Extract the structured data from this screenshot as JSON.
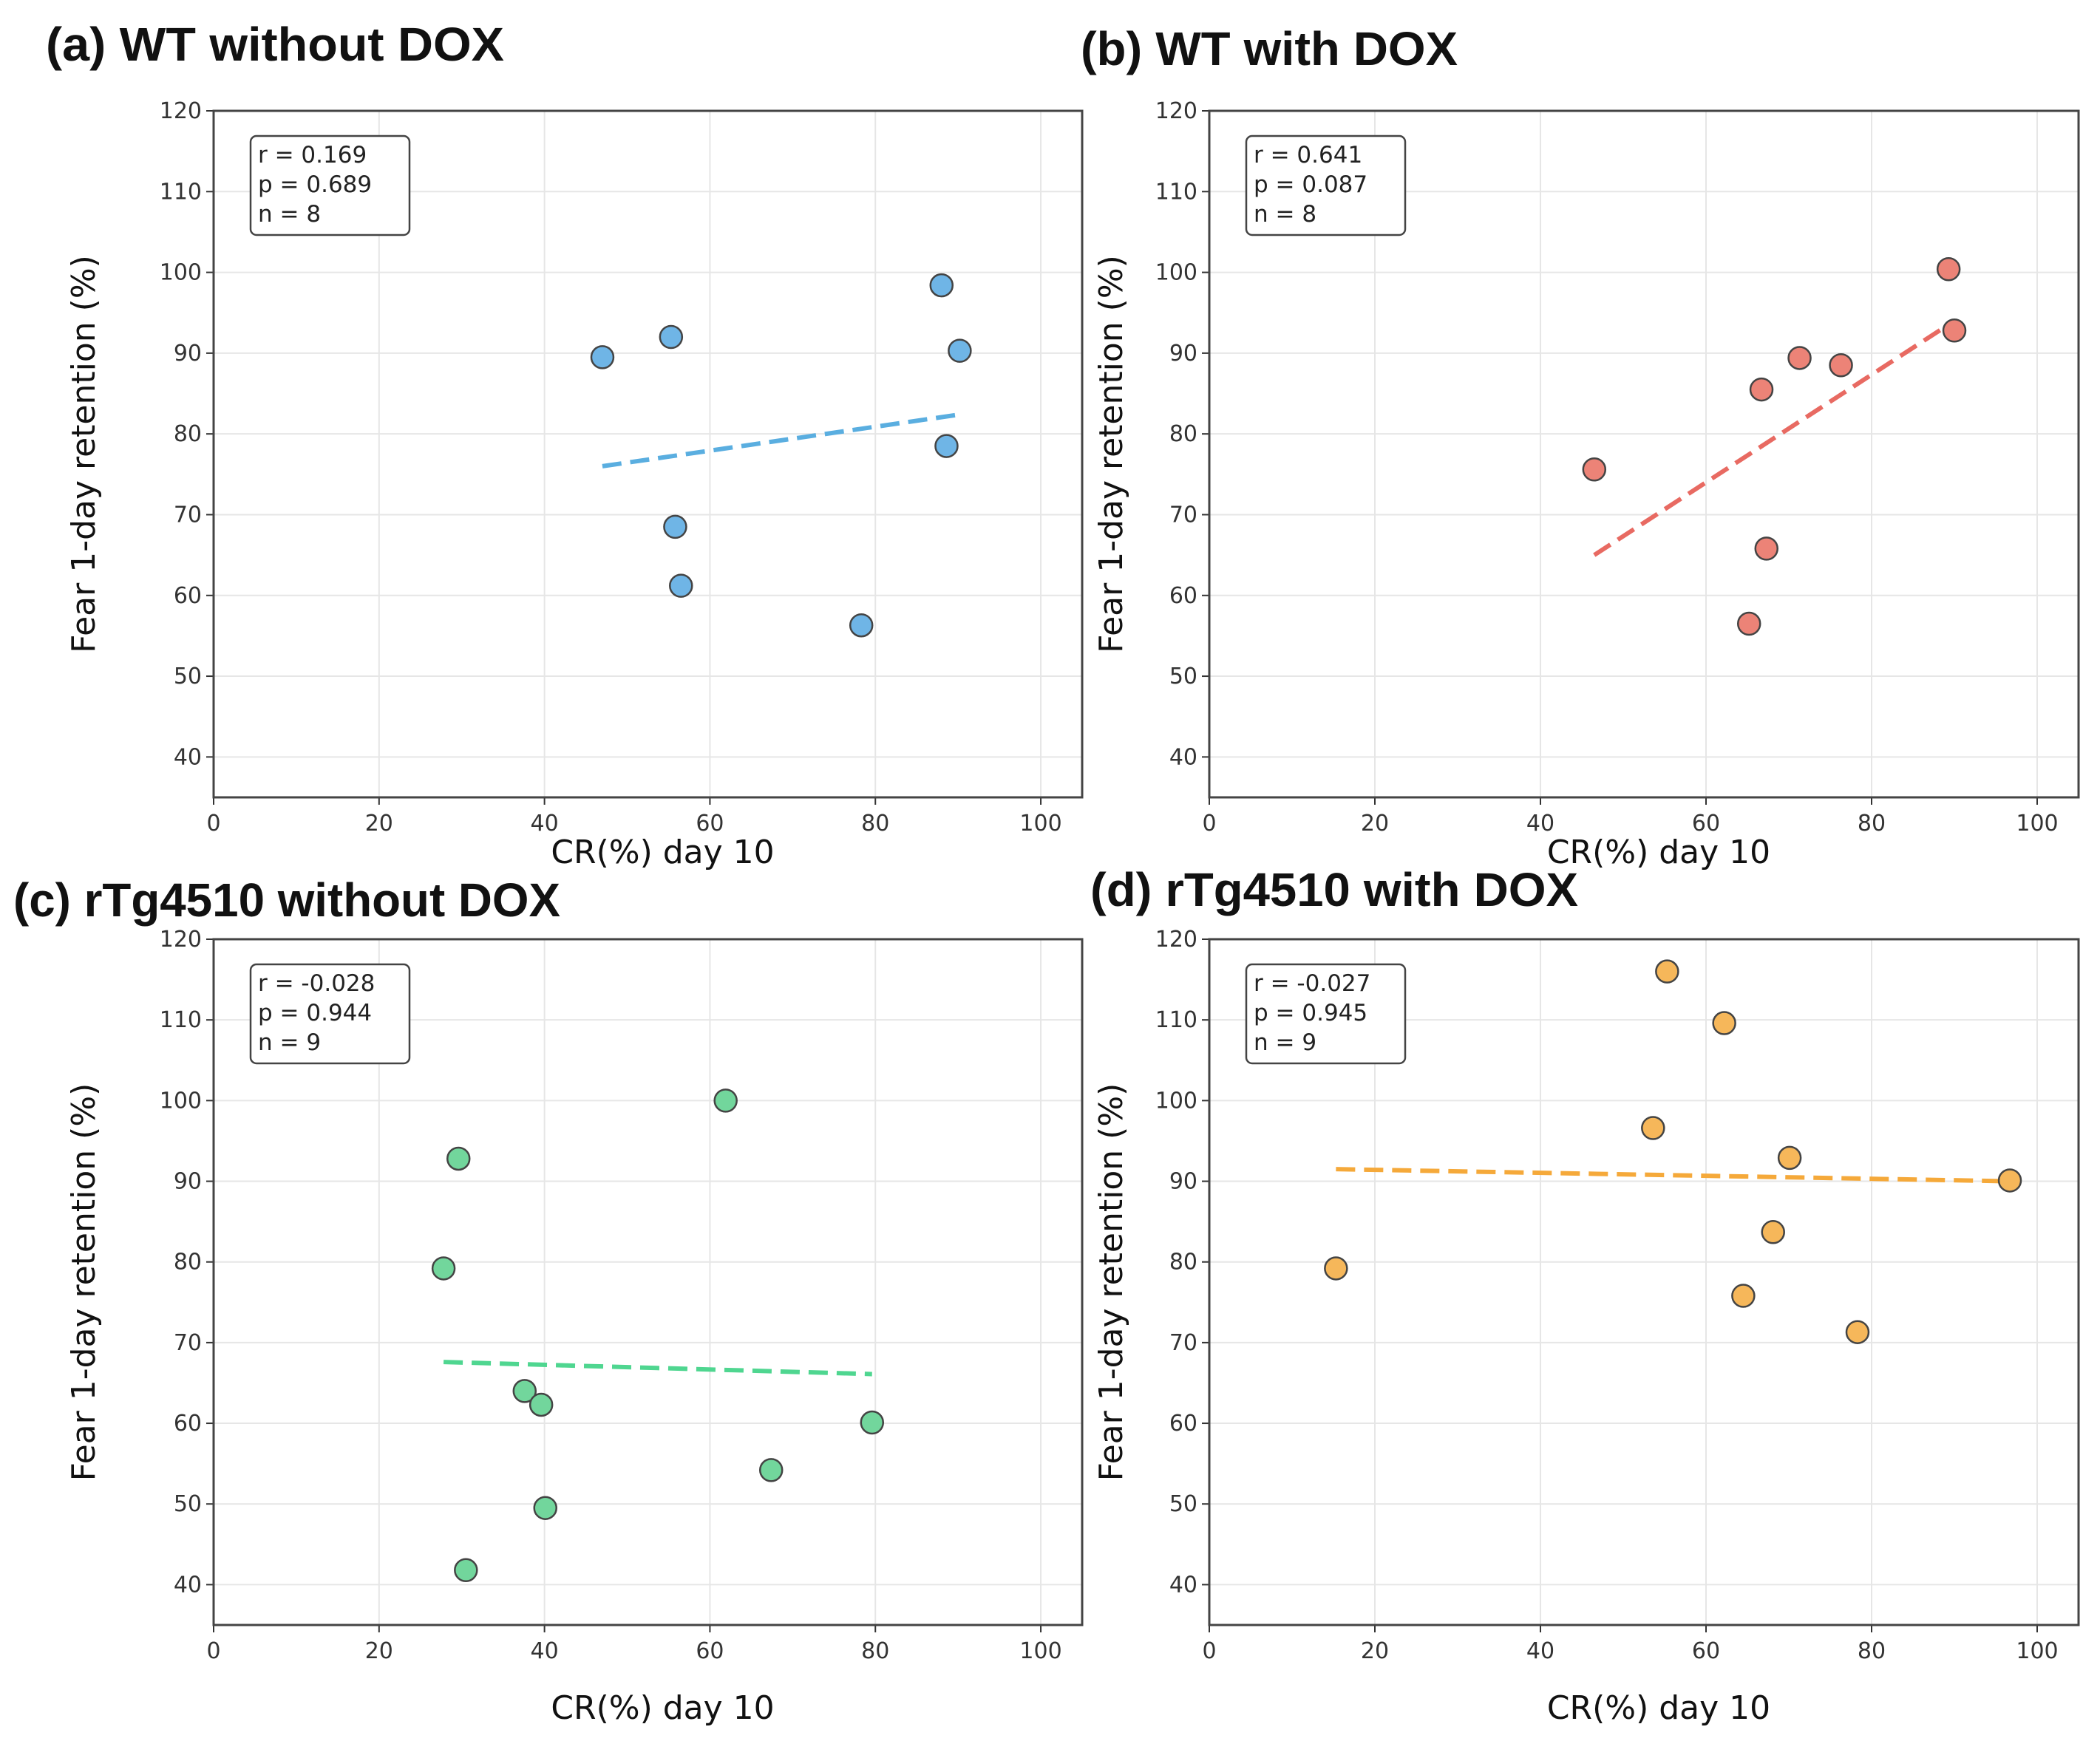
{
  "chart_data": [
    {
      "type": "scatter",
      "title": "(a) WT without DOX",
      "xlabel": "CR(%) day 10",
      "ylabel": "Fear 1-day retention (%)",
      "xlim": [
        0,
        105
      ],
      "ylim": [
        35,
        120
      ],
      "xticks": [
        0,
        20,
        40,
        60,
        80,
        100
      ],
      "yticks": [
        40,
        50,
        60,
        70,
        80,
        90,
        100,
        110,
        120
      ],
      "grid": true,
      "color": "#6fb5e6",
      "line_color": "#5aaee0",
      "stats": [
        "r = 0.169",
        "p = 0.689",
        "n = 8"
      ],
      "points": [
        [
          47,
          89.5
        ],
        [
          55.3,
          92
        ],
        [
          55.8,
          68.5
        ],
        [
          56.5,
          61.2
        ],
        [
          78.3,
          56.3
        ],
        [
          88,
          98.4
        ],
        [
          88.6,
          78.5
        ],
        [
          90.2,
          90.3
        ]
      ],
      "trendline": [
        [
          47,
          76
        ],
        [
          90.2,
          82.4
        ]
      ]
    },
    {
      "type": "scatter",
      "title": "(b) WT with DOX",
      "xlabel": "CR(%) day 10",
      "ylabel": "Fear 1-day retention (%)",
      "xlim": [
        0,
        105
      ],
      "ylim": [
        35,
        120
      ],
      "xticks": [
        0,
        20,
        40,
        60,
        80,
        100
      ],
      "yticks": [
        40,
        50,
        60,
        70,
        80,
        90,
        100,
        110,
        120
      ],
      "grid": true,
      "color": "#ec8377",
      "line_color": "#e86a62",
      "stats": [
        "r = 0.641",
        "p = 0.087",
        "n = 8"
      ],
      "points": [
        [
          46.5,
          75.6
        ],
        [
          65.2,
          56.5
        ],
        [
          66.7,
          85.5
        ],
        [
          67.3,
          65.8
        ],
        [
          71.3,
          89.4
        ],
        [
          76.3,
          88.5
        ],
        [
          89.3,
          100.4
        ],
        [
          90,
          92.8
        ]
      ],
      "trendline": [
        [
          46.5,
          65
        ],
        [
          90,
          94
        ]
      ]
    },
    {
      "type": "scatter",
      "title": "(c) rTg4510 without DOX",
      "xlabel": "CR(%) day 10",
      "ylabel": "Fear 1-day retention (%)",
      "xlim": [
        0,
        105
      ],
      "ylim": [
        35,
        120
      ],
      "xticks": [
        0,
        20,
        40,
        60,
        80,
        100
      ],
      "yticks": [
        40,
        50,
        60,
        70,
        80,
        90,
        100,
        110,
        120
      ],
      "grid": true,
      "color": "#72d69c",
      "line_color": "#4fd690",
      "stats": [
        "r = -0.028",
        "p = 0.944",
        "n = 9"
      ],
      "points": [
        [
          27.8,
          79.2
        ],
        [
          29.6,
          92.8
        ],
        [
          30.5,
          41.8
        ],
        [
          37.6,
          64
        ],
        [
          39.6,
          62.3
        ],
        [
          40.1,
          49.5
        ],
        [
          61.9,
          100
        ],
        [
          67.4,
          54.2
        ],
        [
          79.6,
          60.1
        ]
      ],
      "trendline": [
        [
          27.8,
          67.6
        ],
        [
          79.6,
          66.1
        ]
      ]
    },
    {
      "type": "scatter",
      "title": "(d) rTg4510 with DOX",
      "xlabel": "CR(%) day 10",
      "ylabel": "Fear 1-day retention (%)",
      "xlim": [
        0,
        105
      ],
      "ylim": [
        35,
        120
      ],
      "xticks": [
        0,
        20,
        40,
        60,
        80,
        100
      ],
      "yticks": [
        40,
        50,
        60,
        70,
        80,
        90,
        100,
        110,
        120
      ],
      "grid": true,
      "color": "#f6b75a",
      "line_color": "#f5a93a",
      "stats": [
        "r = -0.027",
        "p = 0.945",
        "n = 9"
      ],
      "points": [
        [
          15.3,
          79.2
        ],
        [
          53.6,
          96.6
        ],
        [
          55.3,
          116
        ],
        [
          62.2,
          109.6
        ],
        [
          64.5,
          75.8
        ],
        [
          68.1,
          83.7
        ],
        [
          70.1,
          92.9
        ],
        [
          78.3,
          71.3
        ],
        [
          96.7,
          90.1
        ]
      ],
      "trendline": [
        [
          15.3,
          91.5
        ],
        [
          96.7,
          90
        ]
      ]
    }
  ]
}
